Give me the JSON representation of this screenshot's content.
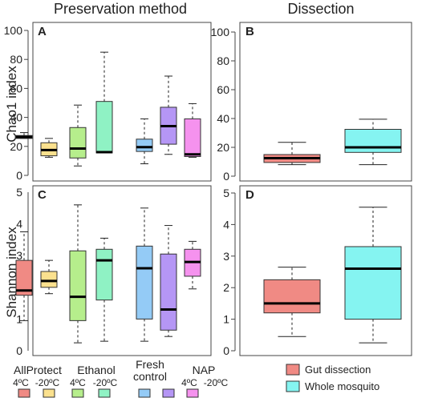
{
  "headers": {
    "left": "Preservation method",
    "right": "Dissection"
  },
  "bottom_labels": {
    "groups": [
      "AllProtect",
      "Ethanol",
      "Fresh",
      "NAP"
    ],
    "group_sub": [
      "control"
    ],
    "temps": [
      "4ºC",
      "-20ºC",
      "4ºC",
      "-20ºC",
      "4ºC",
      "-20ºC"
    ]
  },
  "legend": {
    "gut": "Gut dissection",
    "whole": "Whole mosquito"
  },
  "colors": {
    "ap4": "#f08a84",
    "ap20": "#fbe18e",
    "et4": "#b6ee8c",
    "et20": "#8ff2c4",
    "fresh": "#94cbf6",
    "nap4": "#b596f5",
    "nap20": "#f592ee",
    "gut": "#f08a84",
    "whole": "#85f4f1"
  },
  "chart_data": [
    {
      "panel": "A",
      "type": "boxplot",
      "ylabel": "Chao1 index",
      "ylim": [
        0,
        100
      ],
      "yticks": [
        0,
        20,
        40,
        60,
        80,
        100
      ],
      "show_ticks": true,
      "boxes": [
        {
          "color": "ap4",
          "wlo": 25.5,
          "q1": 25.5,
          "med": 26.5,
          "q3": 27.5,
          "whi": 29.5
        },
        {
          "color": "ap20",
          "wlo": 12.5,
          "q1": 13.5,
          "med": 17.5,
          "q3": 22.5,
          "whi": 25.5
        },
        {
          "color": "et4",
          "wlo": 6.5,
          "q1": 12.0,
          "med": 18.5,
          "q3": 33.0,
          "whi": 48.5
        },
        {
          "color": "et20",
          "wlo": 15.5,
          "q1": 15.5,
          "med": 16.0,
          "q3": 51.0,
          "whi": 85.0
        },
        {
          "color": "fresh",
          "wlo": 8.0,
          "q1": 16.5,
          "med": 19.5,
          "q3": 25.0,
          "whi": 39.0
        },
        {
          "color": "nap4",
          "wlo": 14.5,
          "q1": 21.5,
          "med": 34.0,
          "q3": 47.0,
          "whi": 68.5
        },
        {
          "color": "nap20",
          "wlo": 12.5,
          "q1": 13.0,
          "med": 14.5,
          "q3": 39.0,
          "whi": 49.5
        }
      ]
    },
    {
      "panel": "B",
      "type": "boxplot",
      "ylabel": "",
      "ylim": [
        0,
        100
      ],
      "yticks": [
        0,
        20,
        40,
        60,
        80,
        100
      ],
      "show_ticks": true,
      "boxes": [
        {
          "color": "gut",
          "wlo": 8.0,
          "q1": 9.5,
          "med": 12.5,
          "q3": 15.0,
          "whi": 23.5
        },
        {
          "color": "whole",
          "wlo": 8.0,
          "q1": 16.5,
          "med": 20.0,
          "q3": 32.5,
          "whi": 39.5
        }
      ]
    },
    {
      "panel": "C",
      "type": "boxplot",
      "ylabel": "Shannon index",
      "ylim": [
        0,
        5
      ],
      "yticks": [
        0,
        1,
        2,
        3,
        4,
        5
      ],
      "show_ticks": false,
      "boxes": [
        {
          "color": "ap4",
          "wlo": 0.95,
          "q1": 1.75,
          "med": 1.9,
          "q3": 2.85,
          "whi": 3.75
        },
        {
          "color": "ap20",
          "wlo": 1.8,
          "q1": 2.0,
          "med": 2.2,
          "q3": 2.5,
          "whi": 2.85
        },
        {
          "color": "et4",
          "wlo": 0.25,
          "q1": 0.95,
          "med": 1.7,
          "q3": 3.15,
          "whi": 4.6
        },
        {
          "color": "et20",
          "wlo": 0.3,
          "q1": 1.6,
          "med": 2.85,
          "q3": 3.2,
          "whi": 3.55
        },
        {
          "color": "fresh",
          "wlo": 0.3,
          "q1": 1.0,
          "med": 2.6,
          "q3": 3.3,
          "whi": 4.5
        },
        {
          "color": "nap4",
          "wlo": 0.45,
          "q1": 0.65,
          "med": 1.3,
          "q3": 3.05,
          "whi": 3.95
        },
        {
          "color": "nap20",
          "wlo": 1.95,
          "q1": 2.35,
          "med": 2.8,
          "q3": 3.2,
          "whi": 3.45
        }
      ]
    },
    {
      "panel": "D",
      "type": "boxplot",
      "ylabel": "",
      "ylim": [
        0,
        5
      ],
      "yticks": [
        0,
        1,
        2,
        3,
        4,
        5
      ],
      "show_ticks": true,
      "boxes": [
        {
          "color": "gut",
          "wlo": 0.45,
          "q1": 1.2,
          "med": 1.5,
          "q3": 2.25,
          "whi": 2.65
        },
        {
          "color": "whole",
          "wlo": 0.25,
          "q1": 1.0,
          "med": 2.6,
          "q3": 3.3,
          "whi": 4.55
        }
      ]
    }
  ]
}
